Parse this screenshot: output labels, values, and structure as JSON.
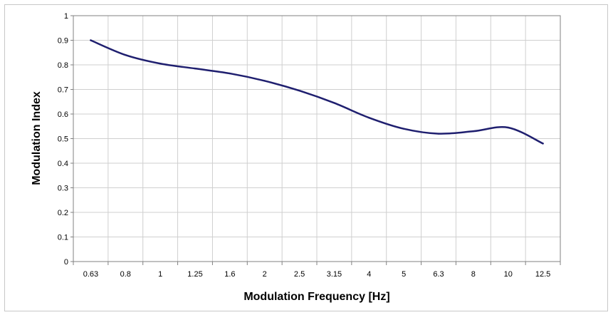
{
  "chart_data": {
    "type": "line",
    "xlabel": "Modulation Frequency [Hz]",
    "ylabel": "Modulation Index",
    "x_tick_labels": [
      "0.63",
      "0.8",
      "1",
      "1.25",
      "1.6",
      "2",
      "2.5",
      "3.15",
      "4",
      "5",
      "6.3",
      "8",
      "10",
      "12.5"
    ],
    "y_tick_labels": [
      "0",
      "0.1",
      "0.2",
      "0.3",
      "0.4",
      "0.5",
      "0.6",
      "0.7",
      "0.8",
      "0.9",
      "1"
    ],
    "ylim": [
      0,
      1
    ],
    "grid": true,
    "legend": false,
    "series": [
      {
        "color": "#1f1f6f",
        "x": [
          "0.63",
          "0.8",
          "1",
          "1.25",
          "1.6",
          "2",
          "2.5",
          "3.15",
          "4",
          "5",
          "6.3",
          "8",
          "10",
          "12.5"
        ],
        "values": [
          0.9,
          0.84,
          0.805,
          0.785,
          0.765,
          0.735,
          0.695,
          0.645,
          0.585,
          0.54,
          0.52,
          0.53,
          0.545,
          0.48
        ]
      }
    ]
  }
}
